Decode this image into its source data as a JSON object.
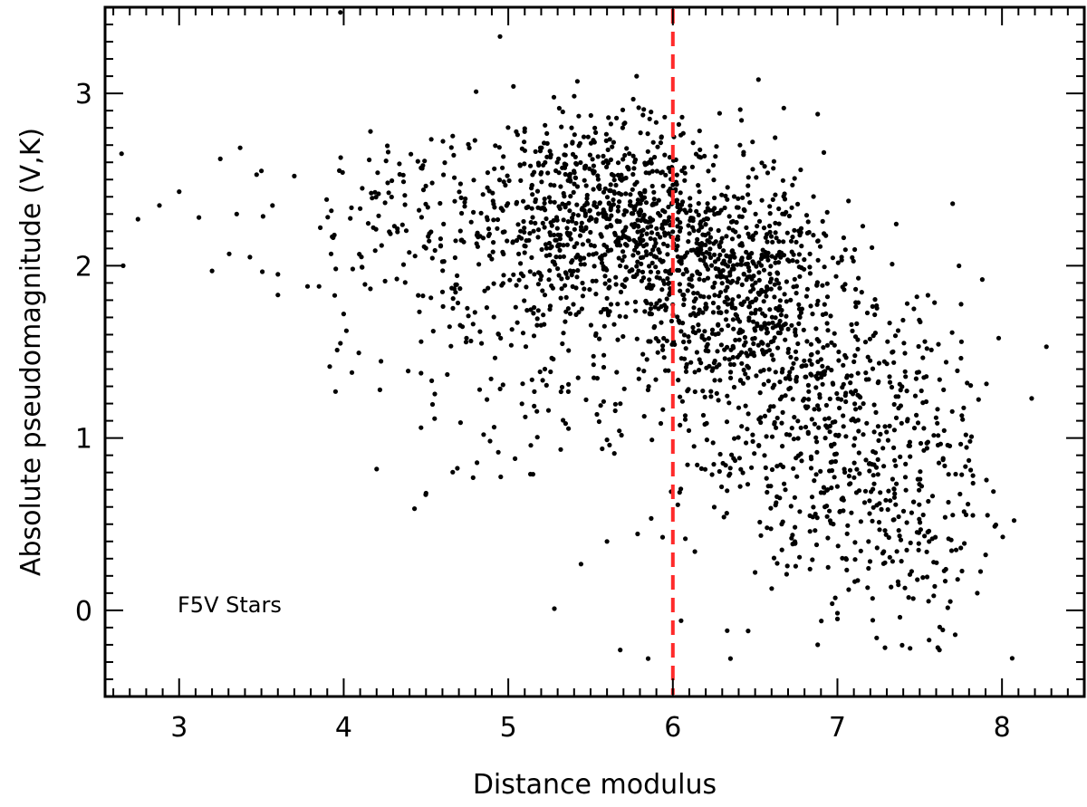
{
  "chart_data": {
    "type": "scatter",
    "xlabel": "Distance modulus",
    "ylabel": "Absolute pseudomagnitude (V,K)",
    "annotation": "F5V Stars",
    "xlim": [
      2.55,
      8.5
    ],
    "ylim": [
      -0.5,
      3.5
    ],
    "x_ticks": [
      3,
      4,
      5,
      6,
      7,
      8
    ],
    "y_ticks": [
      0,
      1,
      2,
      3
    ],
    "x_minor_step": 0.1,
    "y_minor_step": 0.1,
    "grid": false,
    "legend": "none",
    "reference_line": {
      "x": 6.0,
      "color": "#ff2a2a",
      "style": "dashed"
    },
    "point_color": "#000000",
    "line_color": "#000000",
    "clusters": [
      {
        "cx": 5.6,
        "cy": 2.35,
        "sx": 0.35,
        "sy": 0.28,
        "n": 650,
        "seed": 11
      },
      {
        "cx": 6.3,
        "cy": 1.9,
        "sx": 0.35,
        "sy": 0.32,
        "n": 650,
        "seed": 23
      },
      {
        "cx": 6.9,
        "cy": 1.2,
        "sx": 0.4,
        "sy": 0.45,
        "n": 550,
        "seed": 37
      },
      {
        "cx": 5.3,
        "cy": 1.7,
        "sx": 0.5,
        "sy": 0.5,
        "n": 250,
        "seed": 41
      },
      {
        "cx": 4.5,
        "cy": 2.25,
        "sx": 0.45,
        "sy": 0.35,
        "n": 160,
        "seed": 53
      },
      {
        "cx": 7.4,
        "cy": 0.6,
        "sx": 0.3,
        "sy": 0.45,
        "n": 200,
        "seed": 61
      }
    ],
    "points": [
      [
        2.65,
        2.65
      ],
      [
        2.66,
        2.0
      ],
      [
        2.75,
        2.27
      ],
      [
        2.88,
        2.35
      ],
      [
        3.0,
        2.43
      ],
      [
        3.12,
        2.28
      ],
      [
        3.2,
        1.97
      ],
      [
        3.25,
        2.62
      ],
      [
        3.35,
        2.3
      ],
      [
        3.43,
        2.05
      ],
      [
        3.5,
        2.55
      ],
      [
        3.6,
        1.83
      ],
      [
        3.6,
        1.95
      ],
      [
        3.7,
        2.52
      ],
      [
        3.78,
        1.88
      ],
      [
        3.85,
        1.88
      ],
      [
        3.95,
        1.27
      ],
      [
        3.98,
        1.55
      ],
      [
        4.0,
        1.72
      ],
      [
        4.05,
        1.38
      ],
      [
        4.2,
        0.82
      ],
      [
        4.22,
        1.28
      ],
      [
        4.43,
        0.59
      ],
      [
        4.47,
        1.06
      ],
      [
        4.5,
        0.68
      ],
      [
        4.85,
        1.02
      ],
      [
        5.15,
        0.79
      ],
      [
        5.28,
        0.01
      ],
      [
        5.6,
        0.4
      ],
      [
        5.68,
        -0.23
      ],
      [
        5.85,
        -0.28
      ],
      [
        6.05,
        -0.06
      ],
      [
        6.35,
        -0.28
      ],
      [
        6.5,
        0.22
      ],
      [
        6.88,
        -0.2
      ],
      [
        7.0,
        -0.05
      ],
      [
        7.38,
        -0.04
      ],
      [
        7.62,
        -0.23
      ],
      [
        7.85,
        0.1
      ],
      [
        7.98,
        1.58
      ],
      [
        8.18,
        1.23
      ],
      [
        8.27,
        1.53
      ],
      [
        7.88,
        1.92
      ],
      [
        3.98,
        3.47
      ],
      [
        4.95,
        3.33
      ],
      [
        5.42,
        3.07
      ],
      [
        5.78,
        3.1
      ],
      [
        6.52,
        3.08
      ],
      [
        6.88,
        2.88
      ],
      [
        7.7,
        2.36
      ]
    ]
  }
}
